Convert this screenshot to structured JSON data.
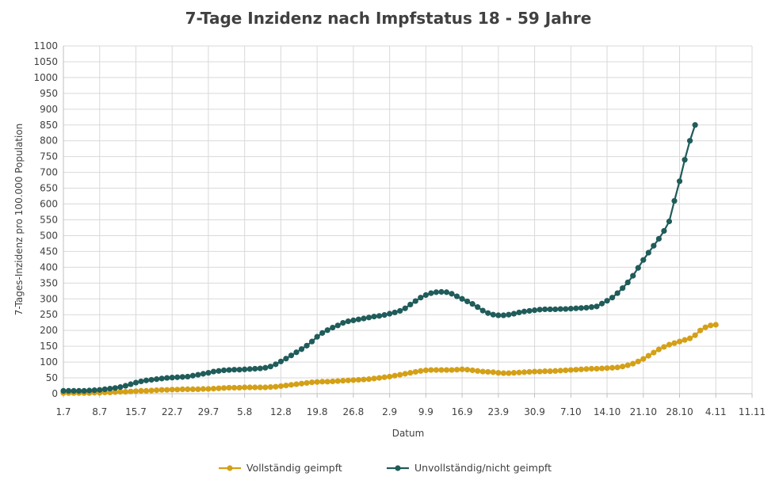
{
  "chart_data": {
    "type": "line",
    "title": "7-Tage Inzidenz nach Impfstatus 18 - 59 Jahre",
    "xlabel": "Datum",
    "ylabel": "7-Tages-Inzidenz  pro 100.000 Population",
    "ylim": [
      0,
      1100
    ],
    "y_step": 50,
    "xlim": [
      0,
      133
    ],
    "x_ticks": [
      {
        "pos": 0,
        "label": "1.7"
      },
      {
        "pos": 7,
        "label": "8.7"
      },
      {
        "pos": 14,
        "label": "15.7"
      },
      {
        "pos": 21,
        "label": "22.7"
      },
      {
        "pos": 28,
        "label": "29.7"
      },
      {
        "pos": 35,
        "label": "5.8"
      },
      {
        "pos": 42,
        "label": "12.8"
      },
      {
        "pos": 49,
        "label": "19.8"
      },
      {
        "pos": 56,
        "label": "26.8"
      },
      {
        "pos": 63,
        "label": "2.9"
      },
      {
        "pos": 70,
        "label": "9.9"
      },
      {
        "pos": 77,
        "label": "16.9"
      },
      {
        "pos": 84,
        "label": "23.9"
      },
      {
        "pos": 91,
        "label": "30.9"
      },
      {
        "pos": 98,
        "label": "7.10"
      },
      {
        "pos": 105,
        "label": "14.10"
      },
      {
        "pos": 112,
        "label": "21.10"
      },
      {
        "pos": 119,
        "label": "28.10"
      },
      {
        "pos": 126,
        "label": "4.11"
      },
      {
        "pos": 133,
        "label": "11.11"
      }
    ],
    "grid": true,
    "legend_position": "bottom",
    "series": [
      {
        "name": "Vollständig geimpft",
        "color": "#d4a017",
        "x_start": 0,
        "values": [
          2,
          2,
          2,
          2,
          2,
          2,
          3,
          3,
          4,
          4,
          5,
          6,
          6,
          7,
          8,
          9,
          9,
          10,
          11,
          12,
          12,
          13,
          13,
          14,
          14,
          14,
          14,
          15,
          15,
          16,
          17,
          18,
          19,
          19,
          19,
          20,
          20,
          20,
          20,
          20,
          21,
          22,
          24,
          26,
          28,
          30,
          32,
          34,
          36,
          37,
          38,
          38,
          39,
          40,
          41,
          42,
          43,
          44,
          45,
          46,
          48,
          50,
          52,
          54,
          57,
          60,
          63,
          66,
          69,
          72,
          74,
          75,
          75,
          75,
          75,
          75,
          76,
          77,
          76,
          74,
          72,
          70,
          69,
          68,
          66,
          65,
          65,
          66,
          67,
          68,
          69,
          70,
          70,
          71,
          71,
          72,
          73,
          74,
          75,
          76,
          77,
          78,
          79,
          79,
          80,
          81,
          82,
          83,
          86,
          90,
          95,
          102,
          110,
          120,
          130,
          140,
          148,
          155,
          160,
          165,
          170,
          175,
          185,
          200,
          210,
          216,
          218
        ]
      },
      {
        "name": "Unvollständig/nicht geimpft",
        "color": "#1f5c5a",
        "x_start": 0,
        "values": [
          9,
          9,
          9,
          9,
          9,
          10,
          11,
          12,
          14,
          16,
          18,
          21,
          25,
          30,
          35,
          39,
          42,
          44,
          46,
          48,
          50,
          51,
          52,
          53,
          54,
          57,
          60,
          63,
          66,
          70,
          72,
          74,
          75,
          76,
          76,
          77,
          78,
          79,
          80,
          82,
          86,
          93,
          102,
          111,
          121,
          131,
          141,
          152,
          165,
          180,
          192,
          201,
          209,
          216,
          224,
          229,
          232,
          235,
          238,
          241,
          244,
          246,
          249,
          253,
          257,
          262,
          270,
          282,
          293,
          304,
          312,
          318,
          321,
          322,
          321,
          316,
          308,
          300,
          292,
          284,
          274,
          263,
          255,
          250,
          248,
          248,
          250,
          253,
          257,
          260,
          262,
          264,
          266,
          267,
          267,
          267,
          268,
          268,
          269,
          270,
          271,
          272,
          274,
          276,
          285,
          294,
          304,
          318,
          334,
          352,
          373,
          398,
          423,
          446,
          468,
          490,
          515,
          545,
          610,
          672,
          740,
          800,
          850
        ]
      }
    ]
  }
}
